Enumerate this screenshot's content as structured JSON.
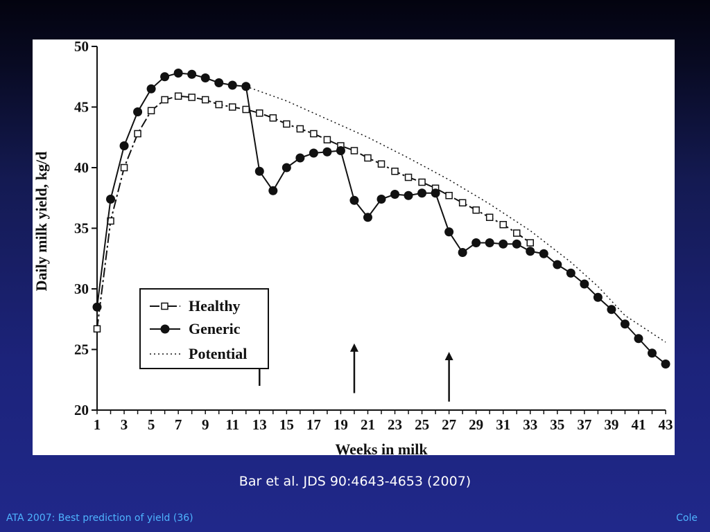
{
  "slide": {
    "citation": "Bar et al. JDS 90:4643-4653 (2007)",
    "footer_left": "ATA 2007: Best prediction of yield (36)",
    "footer_right": "Cole"
  },
  "colors": {
    "footer_text": "#4fb4ff",
    "series": "#111111"
  },
  "chart_data": {
    "type": "line",
    "xlabel": "Weeks in milk",
    "ylabel": "Daily milk yield, kg/d",
    "xlim": [
      1,
      43
    ],
    "ylim": [
      20,
      50
    ],
    "xticks": [
      1,
      3,
      5,
      7,
      9,
      11,
      13,
      15,
      17,
      19,
      21,
      23,
      25,
      27,
      29,
      31,
      33,
      35,
      37,
      39,
      41,
      43
    ],
    "yticks": [
      20,
      25,
      30,
      35,
      40,
      45,
      50
    ],
    "grid": false,
    "legend_position": "lower-left",
    "series": [
      {
        "name": "Healthy",
        "style": "dash-dot-line-open-square",
        "x": [
          1,
          2,
          3,
          4,
          5,
          6,
          7,
          8,
          9,
          10,
          11,
          12,
          13,
          14,
          15,
          16,
          17,
          18,
          19,
          20,
          21,
          22,
          23,
          24,
          25,
          26,
          27,
          28,
          29,
          30,
          31,
          32,
          33
        ],
        "values": [
          26.7,
          35.6,
          40.0,
          42.8,
          44.7,
          45.6,
          45.9,
          45.8,
          45.6,
          45.2,
          45.0,
          44.8,
          44.5,
          44.1,
          43.6,
          43.2,
          42.8,
          42.3,
          41.8,
          41.4,
          40.8,
          40.3,
          39.7,
          39.2,
          38.8,
          38.3,
          37.7,
          37.1,
          36.5,
          35.9,
          35.3,
          34.6,
          33.8
        ]
      },
      {
        "name": "Generic",
        "style": "solid-line-filled-circle",
        "x": [
          1,
          2,
          3,
          4,
          5,
          6,
          7,
          8,
          9,
          10,
          11,
          12,
          13,
          14,
          15,
          16,
          17,
          18,
          19,
          20,
          21,
          22,
          23,
          24,
          25,
          26,
          27,
          28,
          29,
          30,
          31,
          32,
          33,
          34,
          35,
          36,
          37,
          38,
          39,
          40,
          41,
          42,
          43
        ],
        "values": [
          28.5,
          37.4,
          41.8,
          44.6,
          46.5,
          47.5,
          47.8,
          47.7,
          47.4,
          47.0,
          46.8,
          46.7,
          39.7,
          38.1,
          40.0,
          40.8,
          41.2,
          41.3,
          41.4,
          37.3,
          35.9,
          37.4,
          37.8,
          37.7,
          37.9,
          37.9,
          34.7,
          33.0,
          33.8,
          33.8,
          33.7,
          33.7,
          33.1,
          32.9,
          32.0,
          31.3,
          30.4,
          29.3,
          28.3,
          27.1,
          25.9,
          24.7,
          23.8
        ]
      },
      {
        "name": "Potential",
        "style": "dotted-line",
        "x": [
          12,
          15,
          18,
          21,
          24,
          27,
          30,
          33,
          36,
          38,
          40,
          43
        ],
        "values": [
          46.7,
          45.5,
          44.0,
          42.5,
          40.8,
          39.0,
          37.0,
          34.8,
          32.2,
          30.2,
          27.8,
          25.6
        ]
      }
    ],
    "annotations": [
      {
        "type": "arrow-up",
        "x": 13,
        "y_from": 22,
        "y_to": 26
      },
      {
        "type": "arrow-up",
        "x": 20,
        "y_from": 21.4,
        "y_to": 25.5
      },
      {
        "type": "arrow-up",
        "x": 27,
        "y_from": 20.7,
        "y_to": 24.8
      }
    ]
  }
}
